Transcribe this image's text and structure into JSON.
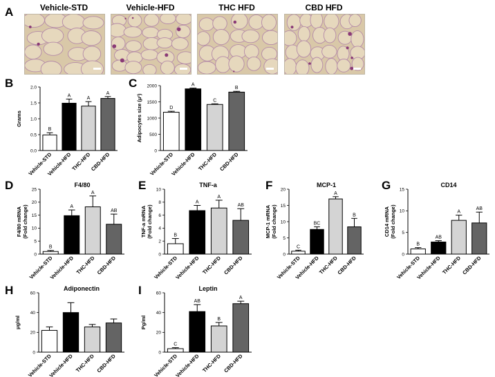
{
  "panel_letters": [
    "A",
    "B",
    "C",
    "D",
    "E",
    "F",
    "G",
    "H",
    "I"
  ],
  "histology": {
    "titles": [
      "Vehicle-STD",
      "Vehicle-HFD",
      "THC HFD",
      "CBD HFD"
    ]
  },
  "chart_data": [
    {
      "id": "B",
      "type": "bar",
      "title": "",
      "ylabel": "Grams",
      "ylabel2": "",
      "ylim": [
        0,
        2.0
      ],
      "yticks": [
        0.0,
        0.5,
        1.0,
        1.5,
        2.0
      ],
      "ytick_labels": [
        "0.0",
        "0.5",
        "1.0",
        "1.5",
        "2.0"
      ],
      "categories": [
        "Vehicle-STD",
        "Vehicle-HFD",
        "THC-HFD",
        "CBD-HFD"
      ],
      "values": [
        0.49,
        1.49,
        1.4,
        1.64
      ],
      "errors": [
        0.07,
        0.13,
        0.14,
        0.06
      ],
      "sig": [
        "B",
        "A",
        "A",
        "A"
      ]
    },
    {
      "id": "C",
      "type": "bar",
      "title": "",
      "ylabel": "Adipocytes size (μ²)",
      "ylabel2": "",
      "ylim": [
        0,
        2000
      ],
      "yticks": [
        0,
        500,
        1000,
        1500,
        2000
      ],
      "ytick_labels": [
        "0",
        "500",
        "1000",
        "1500",
        "2000"
      ],
      "categories": [
        "Vehicle-STD",
        "Vehicle-HFD",
        "THC-HFD",
        "CBD-HFD"
      ],
      "values": [
        1180,
        1900,
        1420,
        1800
      ],
      "errors": [
        30,
        25,
        20,
        25
      ],
      "sig": [
        "D",
        "A",
        "C",
        "B"
      ]
    },
    {
      "id": "D",
      "type": "bar",
      "title": "F4/80",
      "ylabel": "F4/80 mRNA",
      "ylabel2": "(Fold change)",
      "ylim": [
        0,
        25
      ],
      "yticks": [
        0,
        5,
        10,
        15,
        20,
        25
      ],
      "ytick_labels": [
        "0",
        "5",
        "10",
        "15",
        "20",
        "25"
      ],
      "categories": [
        "Vehicle-STD",
        "Vehicle-HFD",
        "THC-HFD",
        "CBD-HFD"
      ],
      "values": [
        1.0,
        14.8,
        18.2,
        11.5
      ],
      "errors": [
        0.4,
        2.2,
        4.2,
        3.9
      ],
      "sig": [
        "B",
        "A",
        "A",
        "AB"
      ]
    },
    {
      "id": "E",
      "type": "bar",
      "title": "TNF-a",
      "ylabel": "TNF-a mRNA",
      "ylabel2": "(Fold change)",
      "ylim": [
        0,
        10
      ],
      "yticks": [
        0,
        2,
        4,
        6,
        8,
        10
      ],
      "ytick_labels": [
        "0",
        "2",
        "4",
        "6",
        "8",
        "10"
      ],
      "categories": [
        "Vehicle-STD",
        "Vehicle-HFD",
        "THC-HFD",
        "CBD-HFD"
      ],
      "values": [
        1.6,
        6.7,
        7.1,
        5.2
      ],
      "errors": [
        0.8,
        0.8,
        1.2,
        1.8
      ],
      "sig": [
        "B",
        "A",
        "A",
        "AB"
      ]
    },
    {
      "id": "F",
      "type": "bar",
      "title": "MCP-1",
      "ylabel": "MCP-1 mRNA",
      "ylabel2": "(Fold change)",
      "ylim": [
        0,
        20
      ],
      "yticks": [
        0,
        5,
        10,
        15,
        20
      ],
      "ytick_labels": [
        "0",
        "5",
        "10",
        "15",
        "20"
      ],
      "categories": [
        "Vehicle-STD",
        "Vehicle-HFD",
        "THC-HFD",
        "CBD-HFD"
      ],
      "values": [
        0.9,
        7.6,
        17.0,
        8.4
      ],
      "errors": [
        0.3,
        0.8,
        0.7,
        2.6
      ],
      "sig": [
        "C",
        "BC",
        "A",
        "B"
      ]
    },
    {
      "id": "G",
      "type": "bar",
      "title": "CD14",
      "ylabel": "CD14 mRNA",
      "ylabel2": "(Fold change)",
      "ylim": [
        0,
        15
      ],
      "yticks": [
        0,
        5,
        10,
        15
      ],
      "ytick_labels": [
        "0",
        "5",
        "10",
        "15"
      ],
      "categories": [
        "Vehicle-STD",
        "Vehicle-HFD",
        "THC-HFD",
        "CBD-HFD"
      ],
      "values": [
        1.2,
        2.8,
        7.8,
        7.2
      ],
      "errors": [
        0.3,
        0.3,
        1.2,
        2.5
      ],
      "sig": [
        "B",
        "AB",
        "A",
        "AB"
      ]
    },
    {
      "id": "H",
      "type": "bar",
      "title": "Adiponectin",
      "ylabel": "μg/ml",
      "ylabel2": "",
      "ylim": [
        0,
        60
      ],
      "yticks": [
        0,
        20,
        40,
        60
      ],
      "ytick_labels": [
        "0",
        "20",
        "40",
        "60"
      ],
      "categories": [
        "Vehicle-STD",
        "Vehicle-HFD",
        "THC-HFD",
        "CBD-HFD"
      ],
      "values": [
        22,
        40,
        25.5,
        29.5
      ],
      "errors": [
        3.5,
        10,
        2.5,
        4
      ],
      "sig": [
        "",
        "",
        "",
        ""
      ]
    },
    {
      "id": "I",
      "type": "bar",
      "title": "Leptin",
      "ylabel": "Pg/ml",
      "ylabel2": "",
      "ylim": [
        0,
        60
      ],
      "yticks": [
        0,
        20,
        40,
        60
      ],
      "ytick_labels": [
        "0",
        "20",
        "40",
        "60"
      ],
      "categories": [
        "Vehicle-STD",
        "Vehicle-HFD",
        "THC-HFD",
        "CBD-HFD"
      ],
      "values": [
        3.5,
        41,
        26.5,
        49
      ],
      "errors": [
        1,
        7,
        3.5,
        2.5
      ],
      "sig": [
        "C",
        "AB",
        "B",
        "A"
      ]
    }
  ],
  "colors": {
    "bars": [
      "#ffffff",
      "#000000",
      "#d4d4d4",
      "#646464"
    ],
    "stroke": "#000000"
  }
}
